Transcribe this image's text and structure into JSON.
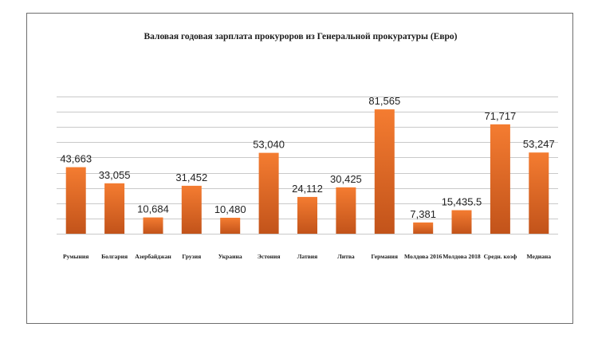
{
  "chart_data": {
    "type": "bar",
    "title": "Валовая годовая зарплата прокуроров из Генеральной прокуратуры (Евро)",
    "xlabel": "",
    "ylabel": "",
    "categories": [
      "Румыния",
      "Болгария",
      "Азербайджан",
      "Грузия",
      "Украина",
      "Эстония",
      "Латвия",
      "Литва",
      "Германия",
      "Молдова 2016",
      "Молдова 2018",
      "Средн. коэф",
      "Медиана"
    ],
    "values": [
      43663,
      33055,
      10684,
      31452,
      10480,
      53040,
      24112,
      30425,
      81565,
      7381,
      15435.5,
      71717,
      53247
    ],
    "value_labels": [
      "43,663",
      "33,055",
      "10,684",
      "31,452",
      "10,480",
      "53,040",
      "24,112",
      "30,425",
      "81,565",
      "7,381",
      "15,435.5",
      "71,717",
      "53,247"
    ],
    "ylim": [
      0,
      90000
    ],
    "y_gridline_step": 10000,
    "grid": true,
    "legend": "none",
    "bar_color_top": "#f47c31",
    "bar_color_bottom": "#c2531a",
    "gridline_color": "#c9c9c9"
  }
}
